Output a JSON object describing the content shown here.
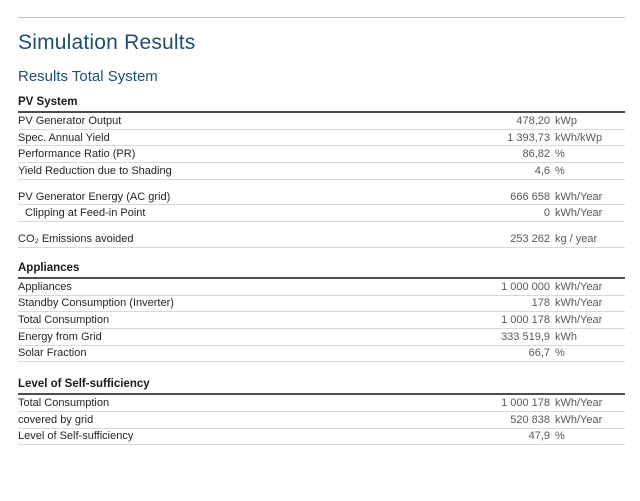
{
  "page": {
    "title": "Simulation Results",
    "subtitle": "Results Total System"
  },
  "colors": {
    "heading_blue": "#1f4e6e",
    "section_rule_dark": "#4d4d4d",
    "row_rule_light": "#d9d9d9",
    "top_rule_gray": "#bfbfbf",
    "label_text": "#262626",
    "value_text": "#595959"
  },
  "sections": [
    {
      "heading": "PV System",
      "groups": [
        {
          "rows": [
            {
              "label": "PV Generator Output",
              "value": "478,20",
              "unit": "kWp"
            },
            {
              "label": "Spec. Annual Yield",
              "value": "1 393,73",
              "unit": "kWh/kWp"
            },
            {
              "label": "Performance Ratio (PR)",
              "value": "86,82",
              "unit": "%"
            },
            {
              "label": "Yield Reduction due to Shading",
              "value": "4,6",
              "unit": "%"
            }
          ]
        },
        {
          "rows": [
            {
              "label": "PV Generator Energy (AC grid)",
              "value": "666 658",
              "unit": "kWh/Year"
            },
            {
              "label": "Clipping at Feed-in Point",
              "value": "0",
              "unit": "kWh/Year"
            }
          ]
        },
        {
          "rows": [
            {
              "label": "CO₂ Emissions avoided",
              "value": "253 262",
              "unit": "kg / year"
            }
          ]
        }
      ]
    },
    {
      "heading": "Appliances",
      "groups": [
        {
          "rows": [
            {
              "label": "Appliances",
              "value": "1 000 000",
              "unit": "kWh/Year"
            },
            {
              "label": "Standby Consumption (Inverter)",
              "value": "178",
              "unit": "kWh/Year"
            },
            {
              "label": "Total Consumption",
              "value": "1 000 178",
              "unit": "kWh/Year"
            },
            {
              "label": "Energy from Grid",
              "value": "333 519,9",
              "unit": "kWh"
            },
            {
              "label": "Solar Fraction",
              "value": "66,7",
              "unit": "%"
            }
          ]
        }
      ]
    },
    {
      "heading": "Level of Self-sufficiency",
      "groups": [
        {
          "rows": [
            {
              "label": "Total Consumption",
              "value": "1 000 178",
              "unit": "kWh/Year"
            },
            {
              "label": "covered by grid",
              "value": "520 838",
              "unit": "kWh/Year"
            },
            {
              "label": "Level of Self-sufficiency",
              "value": "47,9",
              "unit": "%"
            }
          ]
        }
      ]
    }
  ]
}
